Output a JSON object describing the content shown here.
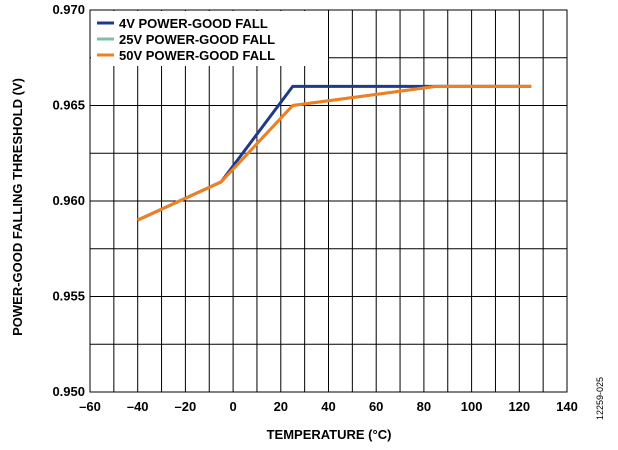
{
  "chart_data": {
    "type": "line",
    "title": "",
    "xlabel": "TEMPERATURE (°C)",
    "ylabel": "POWER-GOOD FALLING THRESHOLD (V)",
    "xlim": [
      -60,
      140
    ],
    "ylim": [
      0.95,
      0.97
    ],
    "x_ticks": [
      -60,
      -40,
      -20,
      0,
      20,
      40,
      60,
      80,
      100,
      120,
      140
    ],
    "x_tick_labels": [
      "–60",
      "–40",
      "–20",
      "0",
      "20",
      "40",
      "60",
      "80",
      "100",
      "120",
      "140"
    ],
    "y_ticks": [
      0.95,
      0.955,
      0.96,
      0.965,
      0.97
    ],
    "y_tick_labels": [
      "0.950",
      "0.955",
      "0.960",
      "0.965",
      "0.970"
    ],
    "grid": true,
    "legend_position": "top-left",
    "series": [
      {
        "name": "4V POWER-GOOD FALL",
        "color": "#1f3a8a",
        "x": [
          -40,
          -5,
          25,
          85,
          125
        ],
        "y": [
          0.959,
          0.961,
          0.966,
          0.966,
          0.966
        ]
      },
      {
        "name": "25V POWER-GOOD FALL",
        "color": "#7fbfa7",
        "x": [
          -40,
          -5,
          25,
          85,
          125
        ],
        "y": [
          0.959,
          0.961,
          0.965,
          0.966,
          0.966
        ]
      },
      {
        "name": "50V POWER-GOOD FALL",
        "color": "#f07f1f",
        "x": [
          -40,
          -5,
          25,
          85,
          125
        ],
        "y": [
          0.959,
          0.961,
          0.965,
          0.966,
          0.966
        ]
      }
    ]
  },
  "figure_id": "12259-025"
}
